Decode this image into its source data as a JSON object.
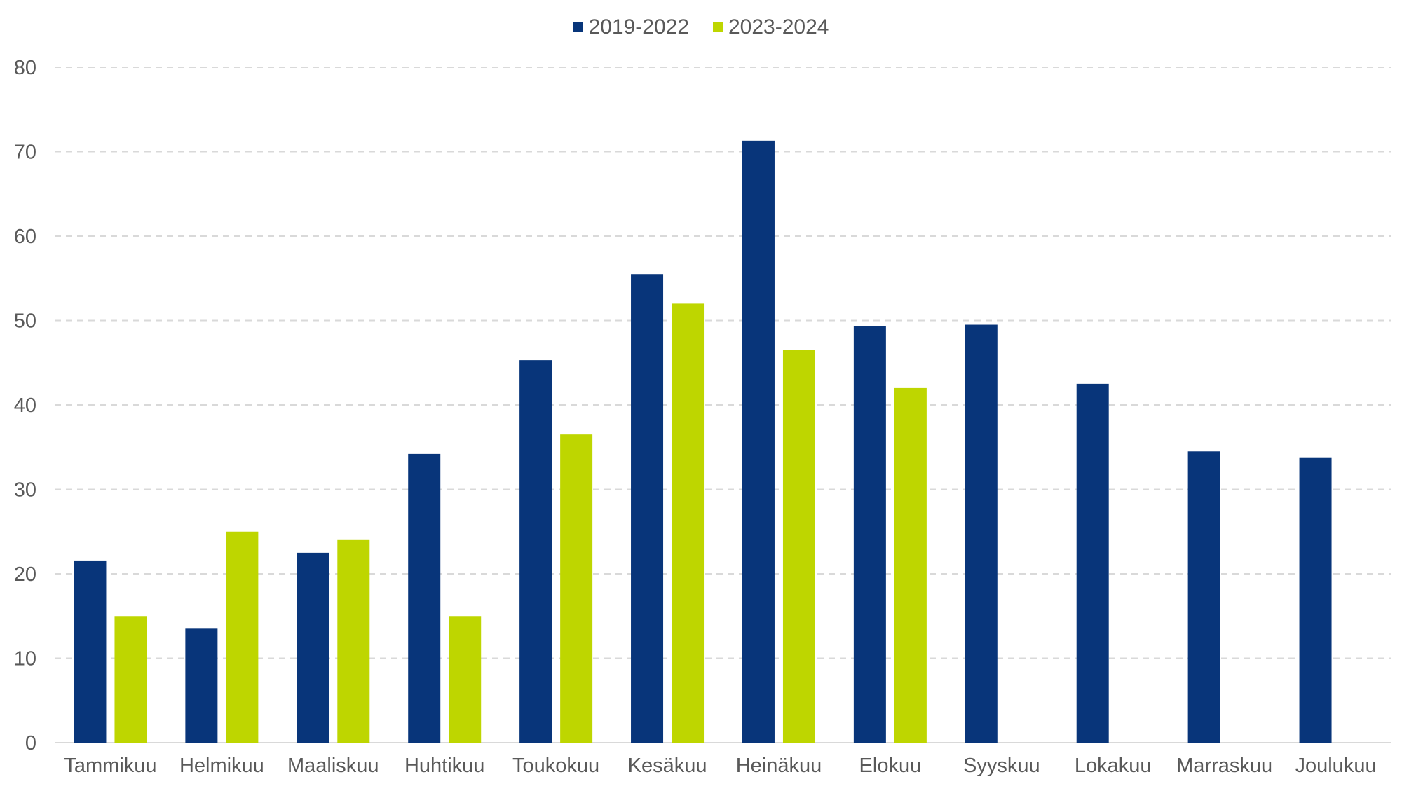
{
  "chart_data": {
    "type": "bar",
    "title": "",
    "xlabel": "",
    "ylabel": "",
    "ylim": [
      0,
      80
    ],
    "yticks": [
      0,
      10,
      20,
      30,
      40,
      50,
      60,
      70,
      80
    ],
    "grid": true,
    "legend_position": "top-center",
    "categories": [
      "Tammikuu",
      "Helmikuu",
      "Maaliskuu",
      "Huhtikuu",
      "Toukokuu",
      "Kesäkuu",
      "Heinäkuu",
      "Elokuu",
      "Syyskuu",
      "Lokakuu",
      "Marraskuu",
      "Joulukuu"
    ],
    "series": [
      {
        "name": "2019-2022",
        "color": "#08357A",
        "values": [
          21.5,
          13.5,
          22.5,
          34.2,
          45.3,
          55.5,
          71.3,
          49.3,
          49.5,
          42.5,
          34.5,
          33.8
        ]
      },
      {
        "name": "2023-2024",
        "color": "#BED600",
        "values": [
          15.0,
          25.0,
          24.0,
          15.0,
          36.5,
          52.0,
          46.5,
          42.0,
          null,
          null,
          null,
          null
        ]
      }
    ]
  }
}
